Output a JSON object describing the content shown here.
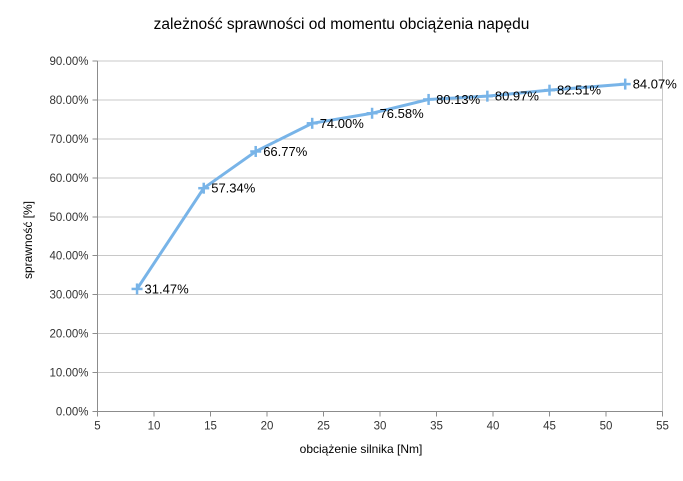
{
  "chart_data": {
    "type": "line",
    "title": "zależność sprawności od momentu obciążenia napędu",
    "xlabel": "obciążenie silnika [Nm]",
    "ylabel": "sprawność [%]",
    "xlim": [
      5,
      55
    ],
    "ylim": [
      0,
      90
    ],
    "grid": "horizontal",
    "legend_position": "none",
    "x_ticks": {
      "values": [
        5,
        10,
        15,
        20,
        25,
        30,
        35,
        40,
        45,
        50,
        55
      ],
      "labels": [
        "5",
        "10",
        "15",
        "20",
        "25",
        "30",
        "35",
        "40",
        "45",
        "50",
        "55"
      ]
    },
    "y_ticks": {
      "values": [
        0,
        10,
        20,
        30,
        40,
        50,
        60,
        70,
        80,
        90
      ],
      "labels": [
        "0.00%",
        "10.00%",
        "20.00%",
        "30.00%",
        "40.00%",
        "50.00%",
        "60.00%",
        "70.00%",
        "80.00%",
        "90.00%"
      ]
    },
    "colors": {
      "series": "#78b4e8",
      "gridline": "#c8c8c8",
      "axis": "#8c8c8c",
      "tick_text": "#333333",
      "label_text": "#000000"
    },
    "series": [
      {
        "name": "sprawność",
        "marker": "plus",
        "color": "#78b4e8",
        "points": [
          {
            "x": 8.5,
            "y": 31.47,
            "label": "31.47%"
          },
          {
            "x": 14.4,
            "y": 57.34,
            "label": "57.34%"
          },
          {
            "x": 19.0,
            "y": 66.77,
            "label": "66.77%"
          },
          {
            "x": 24.0,
            "y": 74.0,
            "label": "74.00%"
          },
          {
            "x": 29.3,
            "y": 76.58,
            "label": "76.58%"
          },
          {
            "x": 34.3,
            "y": 80.13,
            "label": "80.13%"
          },
          {
            "x": 39.5,
            "y": 80.97,
            "label": "80.97%"
          },
          {
            "x": 45.0,
            "y": 82.51,
            "label": "82.51%"
          },
          {
            "x": 51.7,
            "y": 84.07,
            "label": "84.07%"
          }
        ]
      }
    ]
  }
}
